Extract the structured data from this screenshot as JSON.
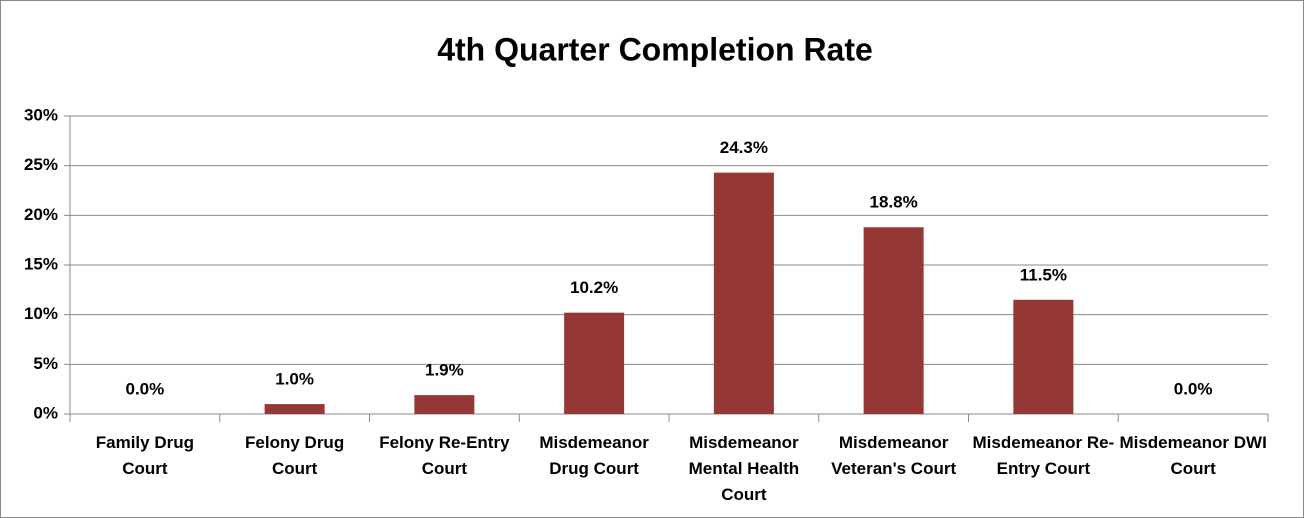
{
  "chart_data": {
    "type": "bar",
    "title": "4th Quarter Completion Rate",
    "categories": [
      "Family Drug Court",
      "Felony Drug Court",
      "Felony Re-Entry Court",
      "Misdemeanor Drug Court",
      "Misdemeanor Mental Health Court",
      "Misdemeanor Veteran's Court",
      "Misdemeanor Re-Entry Court",
      "Misdemeanor DWI Court"
    ],
    "values": [
      0,
      1.0,
      1.9,
      10.2,
      24.3,
      18.8,
      11.5,
      0
    ],
    "value_labels": [
      "0.0%",
      "1.0%",
      "1.9%",
      "10.2%",
      "24.3%",
      "18.8%",
      "11.5%",
      "0.0%"
    ],
    "color": "#953735",
    "ylim": [
      0,
      30
    ],
    "yticks": [
      {
        "value": 0,
        "label": "0%"
      },
      {
        "value": 5,
        "label": "5%"
      },
      {
        "value": 10,
        "label": "10%"
      },
      {
        "value": 15,
        "label": "15%"
      },
      {
        "value": 20,
        "label": "20%"
      },
      {
        "value": 25,
        "label": "25%"
      },
      {
        "value": 30,
        "label": "30%"
      }
    ],
    "grid": true
  }
}
